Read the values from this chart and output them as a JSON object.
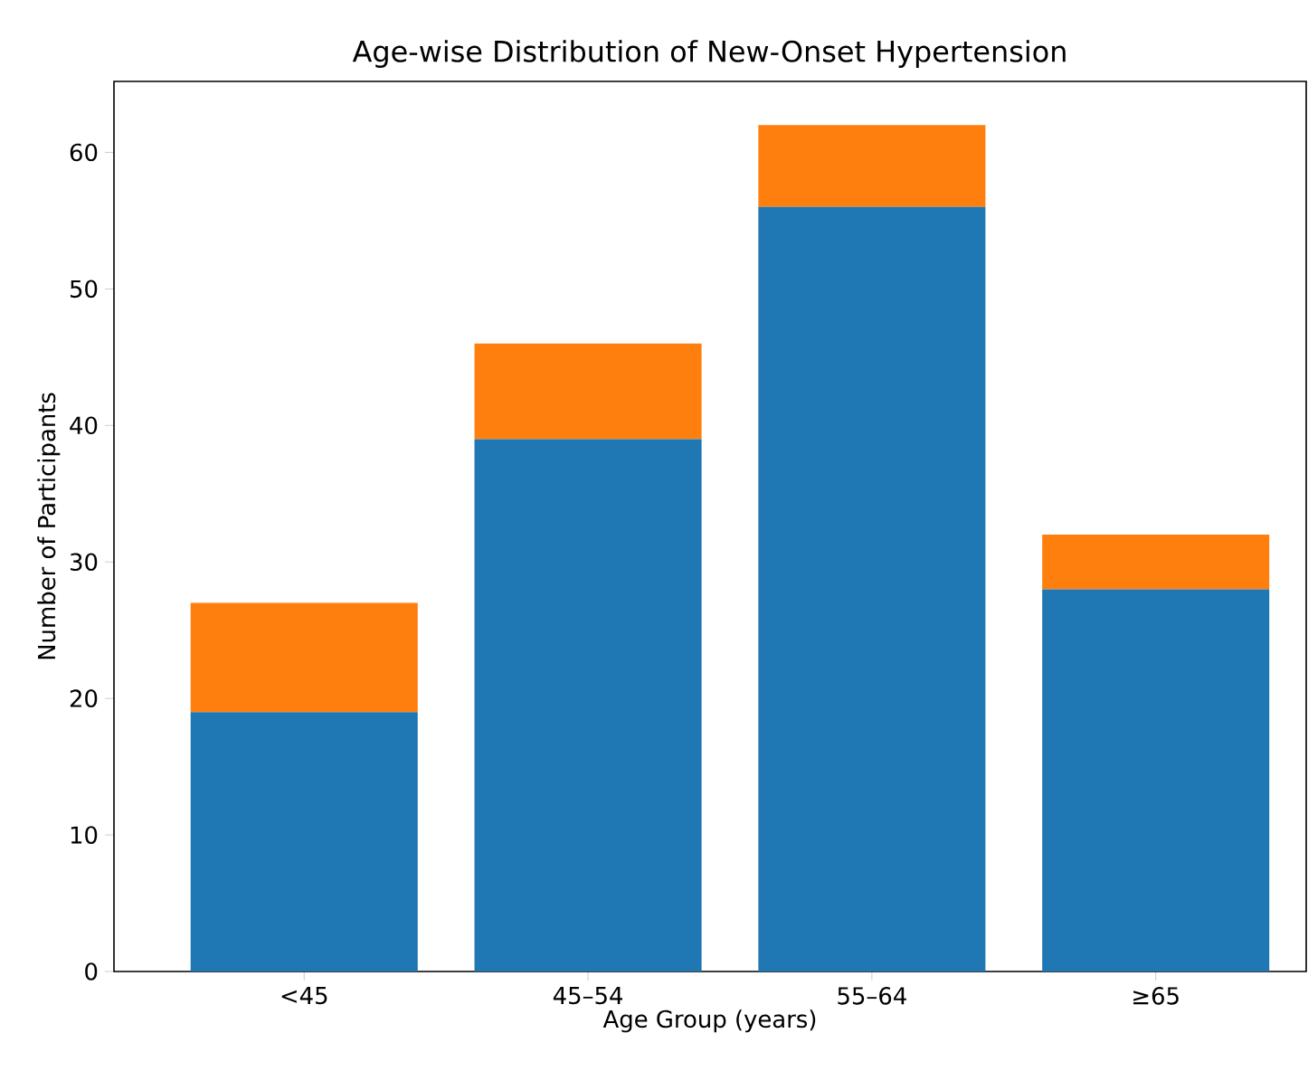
{
  "chart_data": {
    "type": "bar",
    "stacked": true,
    "title": "Age-wise Distribution of New-Onset Hypertension",
    "xlabel": "Age Group (years)",
    "ylabel": "Number of Participants",
    "categories": [
      "<45",
      "45–54",
      "55–64",
      "≥65"
    ],
    "series": [
      {
        "color": "#1f77b4",
        "values": [
          19,
          39,
          56,
          28
        ]
      },
      {
        "color": "#ff7f0e",
        "values": [
          8,
          7,
          6,
          4
        ]
      }
    ],
    "ylim": [
      0,
      65.2
    ],
    "yticks": [
      0,
      10,
      20,
      30,
      40,
      50,
      60
    ]
  }
}
